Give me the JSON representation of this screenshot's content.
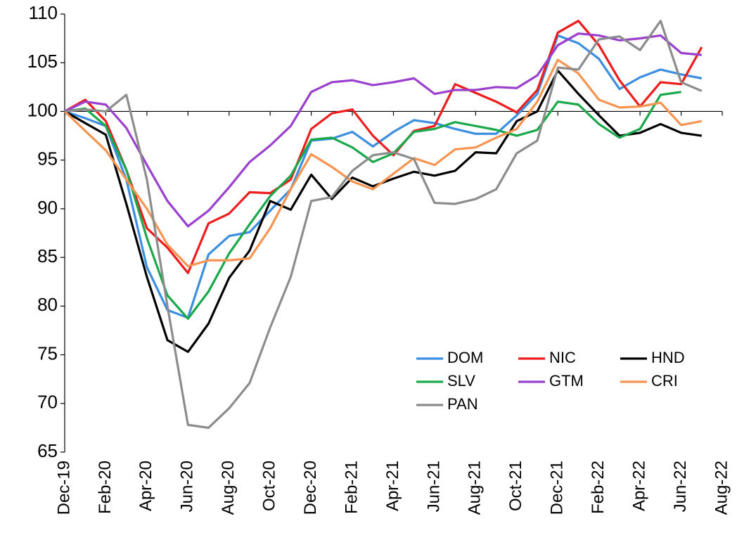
{
  "chart_data": {
    "type": "line",
    "categories": [
      "Dec-19",
      null,
      "Feb-20",
      null,
      "Apr-20",
      null,
      "Jun-20",
      null,
      "Aug-20",
      null,
      "Oct-20",
      null,
      "Dec-20",
      null,
      "Feb-21",
      null,
      "Apr-21",
      null,
      "Jun-21",
      null,
      "Aug-21",
      null,
      "Oct-21",
      null,
      "Dec-21",
      null,
      "Feb-22",
      null,
      "Apr-22",
      null,
      "Jun-22",
      null,
      "Aug-22"
    ],
    "series": [
      {
        "name": "DOM",
        "color": "#3b8ee0",
        "values": [
          100,
          99.3,
          98.5,
          93,
          84,
          79.6,
          78.8,
          85.3,
          87.2,
          87.6,
          89.8,
          92,
          97,
          97.2,
          97.9,
          96.4,
          97.9,
          99.1,
          98.8,
          98.2,
          97.7,
          97.7,
          99.6,
          101.8,
          107.8,
          107,
          105.4,
          102.3,
          103.5,
          104.3,
          103.8,
          103.4,
          null
        ]
      },
      {
        "name": "NIC",
        "color": "#ee1c1c",
        "values": [
          100,
          101.2,
          99,
          94,
          88,
          86,
          83.4,
          88.5,
          89.5,
          91.7,
          91.6,
          93,
          98.2,
          99.8,
          100.2,
          97.5,
          95.5,
          98,
          98.5,
          102.8,
          101.9,
          101,
          99.9,
          102.2,
          108.1,
          109.3,
          106.8,
          103.2,
          100.5,
          103,
          102.8,
          106.6,
          null
        ]
      },
      {
        "name": "HND",
        "color": "#000000",
        "values": [
          100,
          98.8,
          97.6,
          90.5,
          83,
          76.5,
          75.3,
          78.2,
          82.9,
          85.7,
          90.8,
          89.9,
          93.5,
          91,
          93.2,
          92.3,
          93.1,
          93.8,
          93.4,
          93.9,
          95.8,
          95.7,
          99,
          100,
          104.2,
          101.8,
          99.6,
          97.5,
          97.8,
          98.7,
          97.8,
          97.5,
          null
        ]
      },
      {
        "name": "SLV",
        "color": "#19a84a",
        "values": [
          100,
          100.3,
          98.5,
          94,
          87,
          81.1,
          78.7,
          81.5,
          85.4,
          88.4,
          91.3,
          93.4,
          97.1,
          97.3,
          96.3,
          94.8,
          95.7,
          97.9,
          98.2,
          98.9,
          98.5,
          98.1,
          97.5,
          98.1,
          101,
          100.7,
          98.7,
          97.3,
          98.2,
          101.7,
          102,
          null,
          null
        ]
      },
      {
        "name": "GTM",
        "color": "#9b3fcf",
        "values": [
          100,
          101,
          100.7,
          98.3,
          94.5,
          90.8,
          88.2,
          89.8,
          92.2,
          94.8,
          96.5,
          98.5,
          102,
          103,
          103.2,
          102.7,
          103,
          103.4,
          101.8,
          102.2,
          102.2,
          102.5,
          102.4,
          103.7,
          106.8,
          108,
          107.8,
          107.3,
          107.5,
          107.8,
          106,
          105.8,
          null
        ]
      },
      {
        "name": "CRI",
        "color": "#f79451",
        "values": [
          100,
          98,
          96,
          93,
          90,
          86.3,
          84.1,
          84.7,
          84.7,
          84.9,
          88,
          92,
          95.6,
          94.3,
          92.8,
          92,
          93.6,
          95.2,
          94.5,
          96.1,
          96.3,
          97.3,
          98.2,
          101,
          105.3,
          103.9,
          101.2,
          100.4,
          100.5,
          100.9,
          98.6,
          99,
          null
        ]
      },
      {
        "name": "PAN",
        "color": "#8c8c8c",
        "values": [
          100,
          100.2,
          100,
          101.7,
          93,
          80,
          67.8,
          67.5,
          69.5,
          72.1,
          77.8,
          83,
          90.8,
          91.2,
          93.9,
          95.5,
          95.8,
          95.1,
          90.6,
          90.5,
          91,
          92,
          95.7,
          97,
          104.5,
          104.3,
          107.4,
          107.7,
          106.3,
          109.3,
          103,
          102.1,
          null
        ]
      }
    ],
    "ylim": [
      65,
      110
    ],
    "yticks": [
      65,
      70,
      75,
      80,
      85,
      90,
      95,
      100,
      105,
      110
    ],
    "xaxis_at": 100,
    "legend": "lower right",
    "legend_columns": 3,
    "grid": false
  }
}
